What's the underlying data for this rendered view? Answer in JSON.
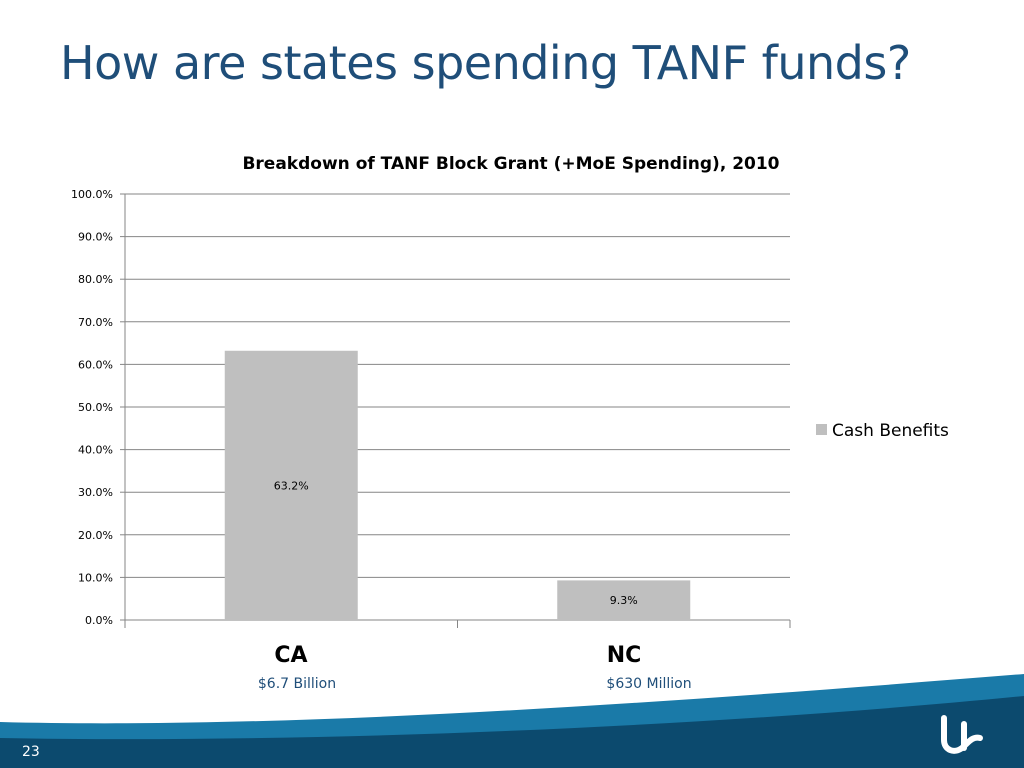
{
  "slide": {
    "title": "How are states spending TANF funds?",
    "number": "23"
  },
  "colors": {
    "title": "#1f4e79",
    "bar": "#bfbfbf",
    "gridline": "#868686",
    "footer_dark": "#0c4a6e",
    "footer_light": "#1a7aa8"
  },
  "footer": {
    "logo_icon": "organization-logo-icon"
  },
  "chart_data": {
    "type": "bar",
    "title": "Breakdown of TANF Block Grant (+MoE Spending), 2010",
    "categories": [
      "CA",
      "NC"
    ],
    "category_sublabels": [
      "$6.7 Billion",
      "$630 Million"
    ],
    "series": [
      {
        "name": "Cash Benefits",
        "values": [
          63.2,
          9.3
        ],
        "data_labels": [
          "63.2%",
          "9.3%"
        ]
      }
    ],
    "ylim": [
      0,
      100
    ],
    "yticks": [
      "0.0%",
      "10.0%",
      "20.0%",
      "30.0%",
      "40.0%",
      "50.0%",
      "60.0%",
      "70.0%",
      "80.0%",
      "90.0%",
      "100.0%"
    ],
    "xlabel": "",
    "ylabel": "",
    "grid": true,
    "legend": "right"
  }
}
